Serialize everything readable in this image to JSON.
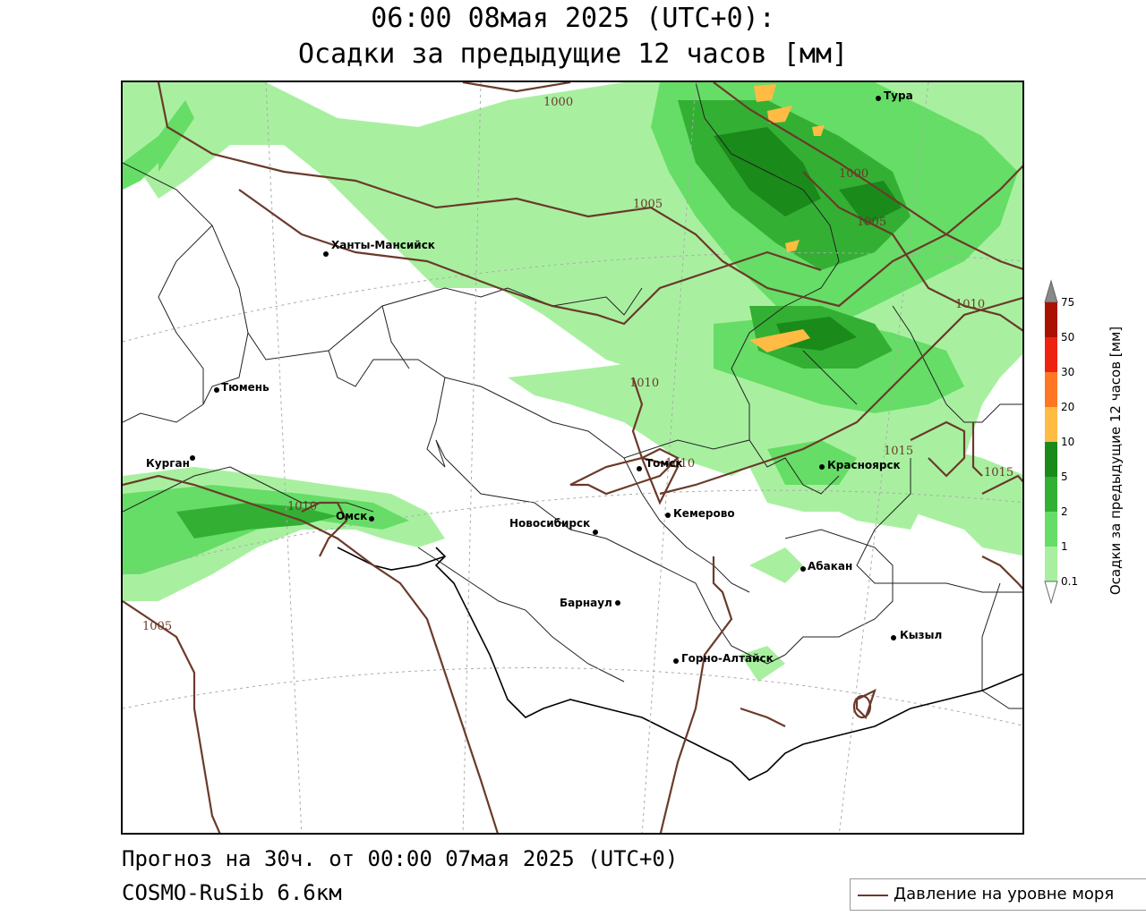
{
  "header": {
    "title_line1": "06:00 08мая 2025 (UTC+0):",
    "title_line2": "Осадки за предыдущие 12 часов [мм]"
  },
  "footer": {
    "forecast": "Прогноз на 30ч. от 00:00 07мая 2025 (UTC+0)",
    "model": "COSMO-RuSib 6.6км"
  },
  "legend": {
    "pressure_line_label": "Давление на уровне моря",
    "pressure_line_color": "#6b3a2a"
  },
  "colorbar": {
    "title": "Осадки за предыдущие 12 часов [мм]",
    "levels": [
      "0.1",
      "1",
      "2",
      "5",
      "10",
      "20",
      "30",
      "50",
      "75"
    ],
    "colors": [
      "#ffffff",
      "#a8f0a0",
      "#66dd66",
      "#33b033",
      "#1a8a1a",
      "#ffbb44",
      "#ff7722",
      "#ee2211",
      "#aa1100",
      "#888888"
    ]
  },
  "cities": [
    {
      "name": "Тура"
    },
    {
      "name": "Ханты-Мансийск"
    },
    {
      "name": "Тюмень"
    },
    {
      "name": "Курган"
    },
    {
      "name": "Омск"
    },
    {
      "name": "Новосибирск"
    },
    {
      "name": "Томск"
    },
    {
      "name": "Кемерово"
    },
    {
      "name": "Красноярск"
    },
    {
      "name": "Абакан"
    },
    {
      "name": "Барнаул"
    },
    {
      "name": "Горно-Алтайск"
    },
    {
      "name": "Кызыл"
    }
  ],
  "isobars": [
    {
      "label": "1000"
    },
    {
      "label": "1005"
    },
    {
      "label": "1000"
    },
    {
      "label": "1005"
    },
    {
      "label": "1010"
    },
    {
      "label": "1010"
    },
    {
      "label": "1010"
    },
    {
      "label": "1015"
    },
    {
      "label": "1015"
    },
    {
      "label": "1010"
    },
    {
      "label": "1005"
    }
  ]
}
